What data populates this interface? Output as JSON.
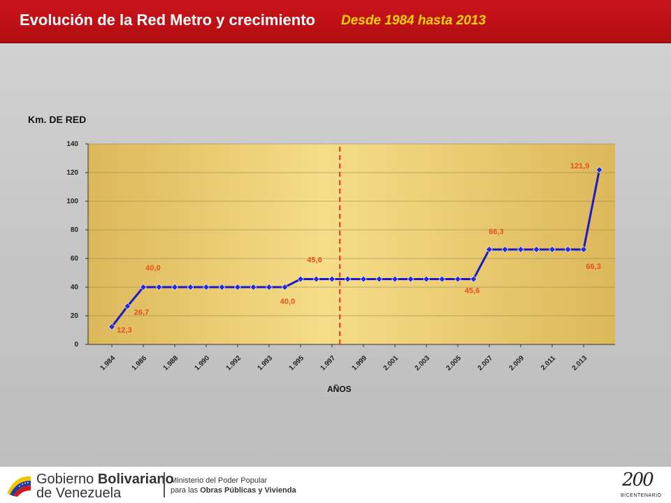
{
  "header": {
    "title": "Evolución de la Red Metro y crecimiento",
    "subtitle": "Desde 1984 hasta 2013"
  },
  "chart_data": {
    "type": "line",
    "ylabel": "Km. DE RED",
    "xlabel": "AÑOS",
    "ylim": [
      0,
      140
    ],
    "yticks": [
      0,
      20,
      40,
      60,
      80,
      100,
      120,
      140
    ],
    "grid": true,
    "x_tick_labels": [
      "1.984",
      "1.986",
      "1.988",
      "1.990",
      "1.992",
      "1.993",
      "1.995",
      "1.997",
      "1.999",
      "2.001",
      "2.003",
      "2.005",
      "2.007",
      "2.009",
      "2.011",
      "2.013"
    ],
    "values": [
      12.3,
      26.7,
      40.0,
      40.0,
      40.0,
      40.0,
      40.0,
      40.0,
      40.0,
      40.0,
      40.0,
      40.0,
      45.6,
      45.6,
      45.6,
      45.6,
      45.6,
      45.6,
      45.6,
      45.6,
      45.6,
      45.6,
      45.6,
      45.6,
      66.3,
      66.3,
      66.3,
      66.3,
      66.3,
      66.3,
      66.3,
      121.9
    ],
    "data_labels": [
      {
        "index": 0,
        "text": "12,3"
      },
      {
        "index": 1,
        "text": "26,7"
      },
      {
        "index": 2,
        "text": "40,0"
      },
      {
        "index": 11,
        "text": "40,0"
      },
      {
        "index": 12,
        "text": "45,6"
      },
      {
        "index": 23,
        "text": "45,6"
      },
      {
        "index": 24,
        "text": "66,3"
      },
      {
        "index": 30,
        "text": "66,3"
      },
      {
        "index": 31,
        "text": "121,9"
      }
    ],
    "reference_line": {
      "after_index": 14,
      "style": "dashed",
      "color": "#e0301e"
    },
    "colors": {
      "line": "#1a1ac8",
      "marker": "#2a2ad0",
      "label": "#e8501e",
      "plot_bg_center": "#f6dd88",
      "plot_bg_edge": "#dcb85a"
    }
  },
  "footer": {
    "gobierno_line1_a": "Gobierno ",
    "gobierno_line1_b": "Bolivariano",
    "gobierno_line2": "de Venezuela",
    "ministerio_line1": "Ministerio del Poder Popular",
    "ministerio_line2_a": "para las ",
    "ministerio_line2_b": "Obras Públicas y Vivienda",
    "logo_number": "200",
    "logo_word": "BICENTENARIO"
  }
}
